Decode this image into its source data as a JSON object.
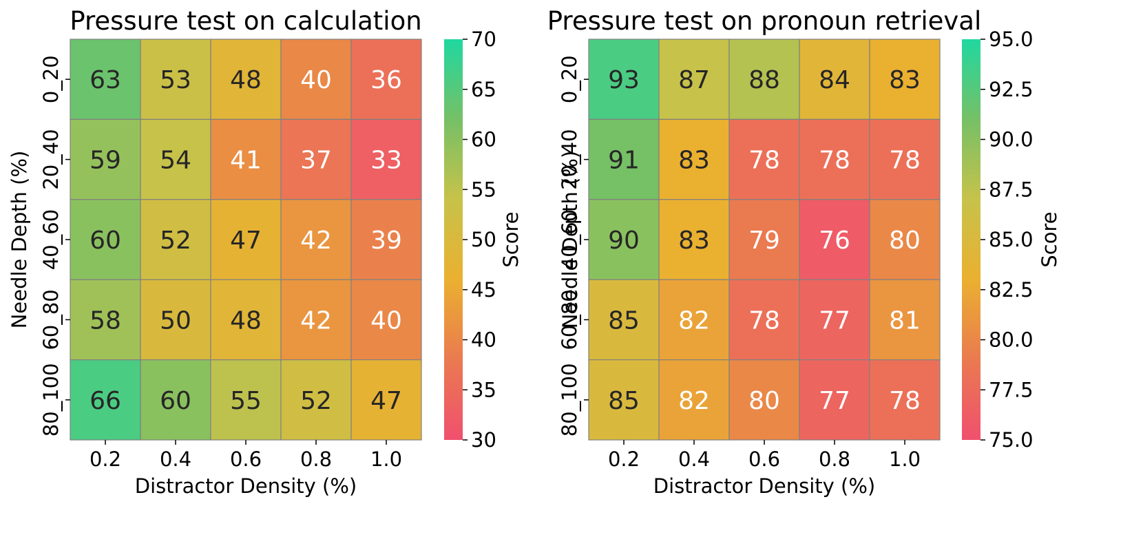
{
  "chart_data": [
    {
      "type": "heatmap",
      "title": "Pressure test on calculation",
      "xlabel": "Distractor Density (%)",
      "ylabel": "Needle Depth (%)",
      "x_categories": [
        "0.2",
        "0.4",
        "0.6",
        "0.8",
        "1.0"
      ],
      "y_categories": [
        "0_20",
        "20_40",
        "40_60",
        "60_80",
        "80_100"
      ],
      "values": [
        [
          63,
          53,
          48,
          40,
          36
        ],
        [
          59,
          54,
          41,
          37,
          33
        ],
        [
          60,
          52,
          47,
          42,
          39
        ],
        [
          58,
          50,
          48,
          42,
          40
        ],
        [
          66,
          60,
          55,
          52,
          47
        ]
      ],
      "colorbar": {
        "label": "Score",
        "range": [
          30,
          70
        ],
        "ticks": [
          "30",
          "35",
          "40",
          "45",
          "50",
          "55",
          "60",
          "65",
          "70"
        ]
      }
    },
    {
      "type": "heatmap",
      "title": "Pressure test on pronoun retrieval",
      "xlabel": "Distractor Density (%)",
      "ylabel": "Needle Depth (%)",
      "x_categories": [
        "0.2",
        "0.4",
        "0.6",
        "0.8",
        "1.0"
      ],
      "y_categories": [
        "0_20",
        "20_40",
        "40_60",
        "60_80",
        "80_100"
      ],
      "values": [
        [
          93,
          87,
          88,
          84,
          83
        ],
        [
          91,
          83,
          78,
          78,
          78
        ],
        [
          90,
          83,
          79,
          76,
          80
        ],
        [
          85,
          82,
          78,
          77,
          81
        ],
        [
          85,
          82,
          80,
          77,
          78
        ]
      ],
      "colorbar": {
        "label": "Score",
        "range": [
          75,
          95
        ],
        "ticks": [
          "75.0",
          "77.5",
          "80.0",
          "82.5",
          "85.0",
          "87.5",
          "90.0",
          "92.5",
          "95.0"
        ]
      }
    }
  ],
  "colormap": {
    "stops": [
      "#f0506e",
      "#ea7a50",
      "#eab030",
      "#c7c24a",
      "#76c066",
      "#20d8a0"
    ],
    "cell_border": "#808080",
    "dark_text": "#262626",
    "light_text": "#ffffff"
  }
}
